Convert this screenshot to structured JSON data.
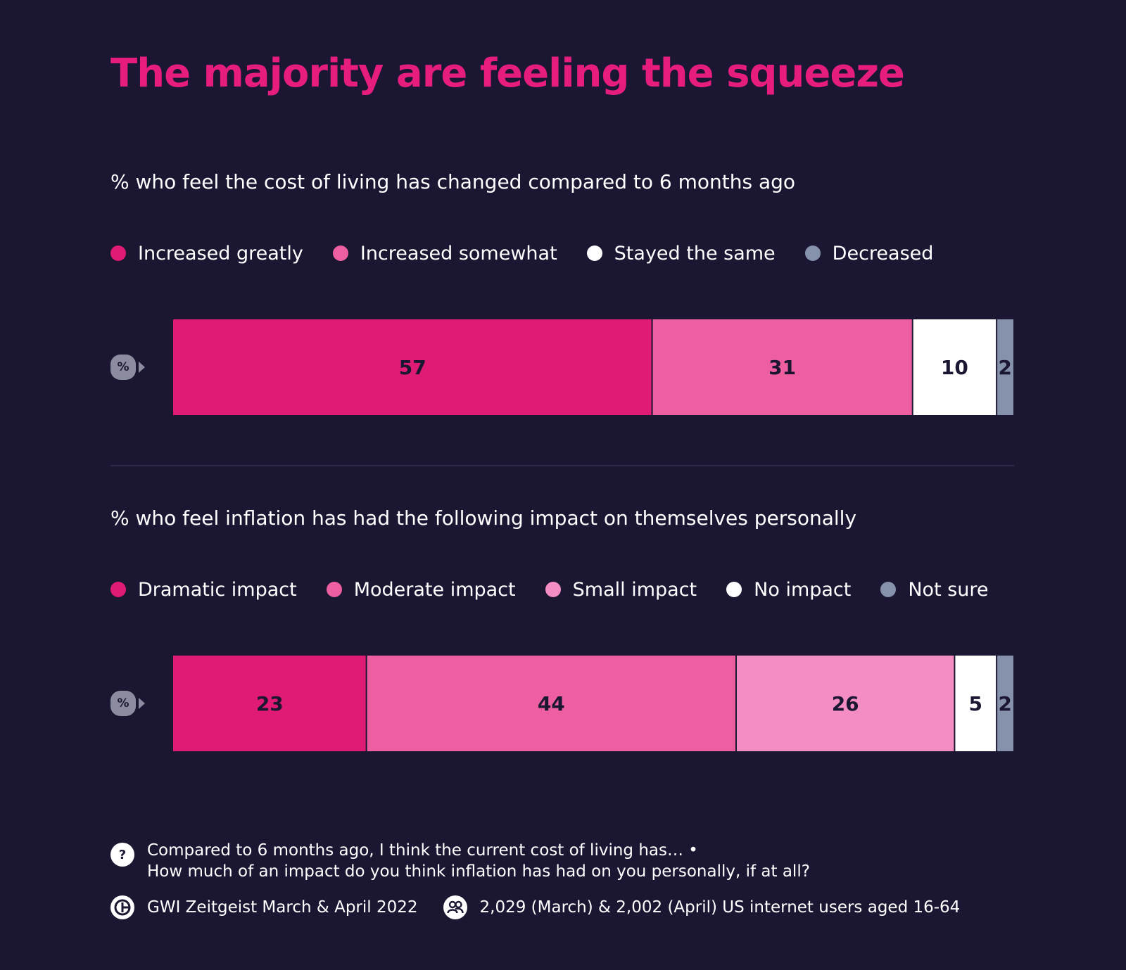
{
  "header": {
    "title": "The majority are feeling the squeeze"
  },
  "pct_badge": "%",
  "chart_data": [
    {
      "type": "bar",
      "stacked": true,
      "orientation": "horizontal",
      "title": "% who feel the cost of living has changed compared to 6 months ago",
      "legend_position": "top",
      "categories": [
        "%"
      ],
      "series": [
        {
          "name": "Increased greatly",
          "color": "#e01a77",
          "values": [
            57
          ]
        },
        {
          "name": "Increased somewhat",
          "color": "#ee5fa1",
          "values": [
            31
          ]
        },
        {
          "name": "Stayed the same",
          "color": "#ffffff",
          "values": [
            10
          ]
        },
        {
          "name": "Decreased",
          "color": "#8691ab",
          "values": [
            2
          ]
        }
      ]
    },
    {
      "type": "bar",
      "stacked": true,
      "orientation": "horizontal",
      "title": "% who feel inflation has had the following impact on themselves personally",
      "legend_position": "top",
      "categories": [
        "%"
      ],
      "series": [
        {
          "name": "Dramatic impact",
          "color": "#e01a77",
          "values": [
            23
          ]
        },
        {
          "name": "Moderate impact",
          "color": "#ee5fa1",
          "values": [
            44
          ]
        },
        {
          "name": "Small impact",
          "color": "#f48dc3",
          "values": [
            26
          ]
        },
        {
          "name": "No impact",
          "color": "#ffffff",
          "values": [
            5
          ]
        },
        {
          "name": "Not sure",
          "color": "#8691ab",
          "values": [
            2
          ]
        }
      ]
    }
  ],
  "footer": {
    "question_icon": "?",
    "question_line1": "Compared to 6 months ago, I think the current cost of living has… •",
    "question_line2": "How much of an impact do you think inflation has had on you personally, if at all?",
    "source": "GWI Zeitgeist March & April 2022",
    "sample": "2,029 (March) & 2,002 (April) US internet users aged 16-64",
    "source_icon": "gwi-logo-icon",
    "sample_icon": "people-icon"
  }
}
